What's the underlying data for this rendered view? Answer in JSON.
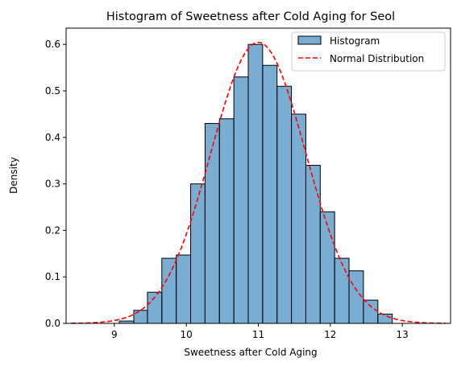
{
  "chart_data": {
    "type": "bar",
    "title": "Histogram of Sweetness after Cold Aging for Seol",
    "xlabel": "Sweetness after Cold Aging",
    "ylabel": "Density",
    "xlim": [
      8.33,
      13.67
    ],
    "ylim": [
      0,
      0.635
    ],
    "x_ticks": [
      9,
      10,
      11,
      12,
      13
    ],
    "y_ticks": [
      0.0,
      0.1,
      0.2,
      0.3,
      0.4,
      0.5,
      0.6
    ],
    "grid": false,
    "legend_position": "top-right",
    "bin_edges": [
      9.07,
      9.27,
      9.46,
      9.66,
      9.86,
      10.06,
      10.26,
      10.46,
      10.66,
      10.86,
      11.06,
      11.26,
      11.46,
      11.66,
      11.86,
      12.06,
      12.26,
      12.46,
      12.66,
      12.86
    ],
    "series": [
      {
        "name": "Histogram",
        "kind": "histogram",
        "color": "#1f77b4",
        "values": [
          0.005,
          0.028,
          0.067,
          0.14,
          0.147,
          0.3,
          0.43,
          0.44,
          0.53,
          0.6,
          0.555,
          0.51,
          0.45,
          0.34,
          0.24,
          0.14,
          0.113,
          0.05,
          0.02
        ]
      },
      {
        "name": "Normal Distribution",
        "kind": "line",
        "color": "#ff0000",
        "style": "dashed",
        "mean": 11.0,
        "std": 0.66,
        "x_range": [
          8.4,
          13.6
        ]
      }
    ]
  }
}
